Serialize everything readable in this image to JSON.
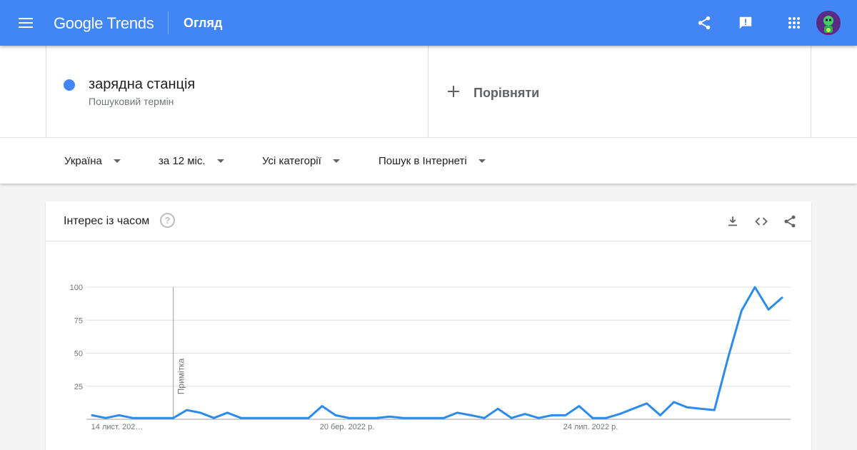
{
  "header": {
    "logo_text": "Google Trends",
    "page_title": "Огляд",
    "icons": [
      "menu-icon",
      "share-icon",
      "feedback-icon",
      "apps-icon",
      "avatar"
    ],
    "background_color": "#4285f4"
  },
  "search": {
    "term": "зарядна станція",
    "term_type": "Пошуковий термін",
    "term_color": "#4285f4",
    "compare_label": "Порівняти"
  },
  "filters": {
    "region": "Україна",
    "period": "за 12 міс.",
    "category": "Усі категорії",
    "search_type": "Пошук в Інтернеті"
  },
  "card": {
    "title": "Інтерес із часом",
    "help_symbol": "?",
    "icons": [
      "download-icon",
      "embed-icon",
      "share-icon"
    ]
  },
  "chart_data": {
    "type": "line",
    "title": "",
    "xlabel": "",
    "ylabel": "",
    "ylim": [
      0,
      100
    ],
    "y_ticks": [
      "100",
      "75",
      "50",
      "25"
    ],
    "x_tick_labels": [
      {
        "label": "14 лист. 202…",
        "index": 0
      },
      {
        "label": "20 бер. 2022 р.",
        "index": 17
      },
      {
        "label": "24 лип. 2022 р.",
        "index": 35
      }
    ],
    "annotation": {
      "label": "Примітка",
      "index": 6
    },
    "grid": true,
    "series": [
      {
        "color": "#2d8ceb",
        "values": [
          3,
          1,
          3,
          1,
          1,
          1,
          1,
          7,
          5,
          1,
          5,
          1,
          1,
          1,
          1,
          1,
          1,
          10,
          3,
          1,
          1,
          1,
          2,
          1,
          1,
          1,
          1,
          5,
          3,
          1,
          8,
          1,
          4,
          1,
          3,
          3,
          10,
          1,
          1,
          4,
          8,
          12,
          3,
          13,
          9,
          8,
          7,
          46,
          82,
          100,
          83,
          92
        ]
      }
    ]
  }
}
